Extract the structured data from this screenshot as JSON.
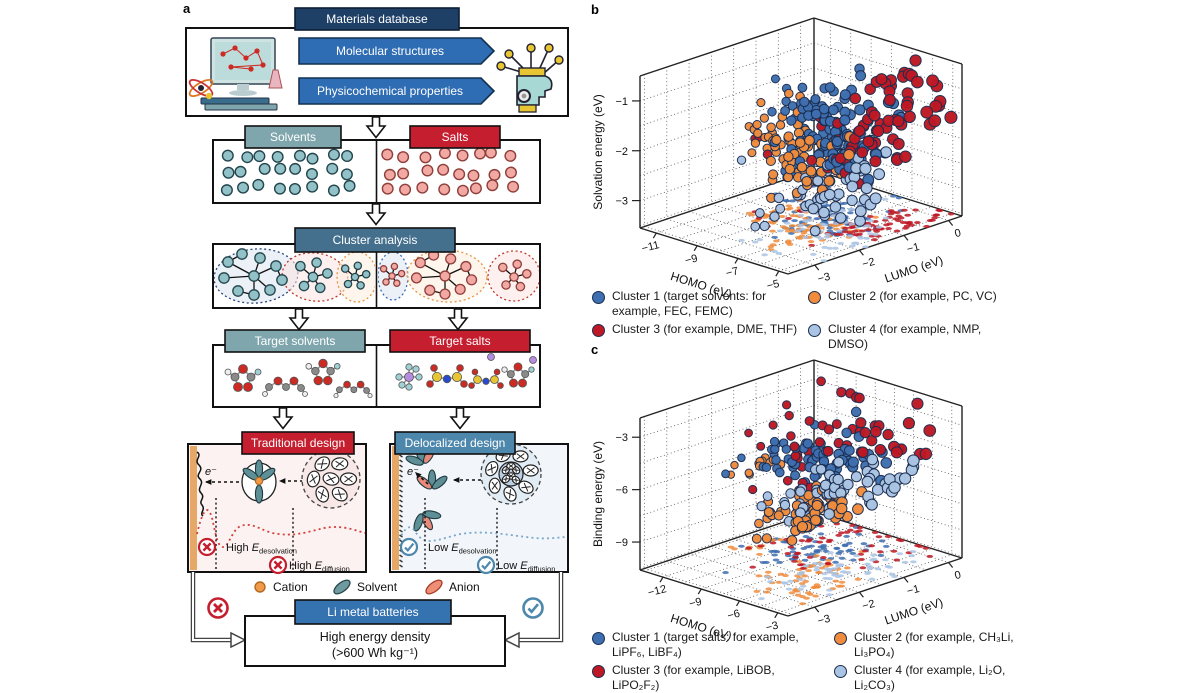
{
  "figure": {
    "panel_a_label": "a",
    "panel_b_label": "b",
    "panel_c_label": "c"
  },
  "colors": {
    "navy_box": "#1e3f66",
    "blue_arrow": "#2e6cb3",
    "steel_box": "#45708d",
    "teal_box": "#7fa6ad",
    "red_box": "#c41e2f",
    "delocalized_blue": "#4d87ac",
    "li_blue": "#3572b0",
    "cluster1": "#3e6fb0",
    "cluster2": "#f08c3c",
    "cluster3": "#bd1823",
    "cluster4": "#aac4e4",
    "cation_orange": "#f09a4a",
    "solvent_teal": "#6f9aa0",
    "anion_salmon": "#ef8e77"
  },
  "flowchart": {
    "materials_database": "Materials database",
    "molecular_structures": "Molecular structures",
    "physicochemical_properties": "Physicochemical properties",
    "solvents": "Solvents",
    "salts": "Salts",
    "cluster_analysis": "Cluster analysis",
    "target_solvents": "Target solvents",
    "target_salts": "Target salts",
    "traditional_design": "Traditional design",
    "delocalized_design": "Delocalized design",
    "electron_label": "e⁻",
    "traditional": {
      "desolvation": {
        "prefix": "High ",
        "symbol": "E",
        "sub": "desolvation"
      },
      "diffusion": {
        "prefix": "High ",
        "symbol": "E",
        "sub": "diffusion"
      }
    },
    "delocalized": {
      "desolvation": {
        "prefix": "Low ",
        "symbol": "E",
        "sub": "desolvation"
      },
      "diffusion": {
        "prefix": "Low ",
        "symbol": "E",
        "sub": "diffusion"
      }
    },
    "species_legend": {
      "cation": "Cation",
      "solvent": "Solvent",
      "anion": "Anion"
    },
    "li_metal_batteries": "Li metal batteries",
    "energy_line1": "High energy density",
    "energy_line2": "(>600 Wh kg⁻¹)"
  },
  "chart_data": [
    {
      "type": "scatter3d",
      "panel": "b",
      "xlabel": "HOMO (eV)",
      "ylabel": "LUMO (eV)",
      "zlabel": "Solvation energy (eV)",
      "x_range": [
        -11.8,
        -4.55
      ],
      "y_range": [
        -3.6,
        0.3
      ],
      "z_range": [
        -3.55,
        -0.5
      ],
      "x_ticks": [
        -11,
        -9,
        -7,
        -5
      ],
      "y_ticks": [
        0,
        -1,
        -2,
        -3
      ],
      "z_ticks": [
        -1,
        -2,
        -3
      ],
      "x_grid": [
        -11,
        -10,
        -9,
        -8,
        -7,
        -6,
        -5
      ],
      "y_grid": [
        0,
        -0.5,
        -1,
        -1.5,
        -2,
        -2.5,
        -3,
        -3.5
      ],
      "z_grid": [
        -1,
        -1.5,
        -2,
        -2.5,
        -3,
        -3.5
      ],
      "seed": 7,
      "clusters": [
        {
          "name": "Cluster 1",
          "color": "#3e6fb0",
          "blobs": [
            {
              "n": 55,
              "c": [
                -7.9,
                -1.0,
                -1.75
              ],
              "s": [
                0.75,
                0.55,
                0.35
              ]
            },
            {
              "n": 30,
              "c": [
                -8.9,
                -0.8,
                -1.55
              ],
              "s": [
                0.65,
                0.45,
                0.3
              ]
            },
            {
              "n": 30,
              "c": [
                -7.1,
                -1.5,
                -2.05
              ],
              "s": [
                0.55,
                0.45,
                0.3
              ]
            }
          ]
        },
        {
          "name": "Cluster 2",
          "color": "#f08c3c",
          "blobs": [
            {
              "n": 38,
              "c": [
                -9.4,
                -1.55,
                -1.9
              ],
              "s": [
                0.5,
                0.4,
                0.28
              ]
            },
            {
              "n": 48,
              "c": [
                -7.0,
                -1.9,
                -2.2
              ],
              "s": [
                0.6,
                0.5,
                0.3
              ]
            }
          ]
        },
        {
          "name": "Cluster 3",
          "color": "#bd1823",
          "blobs": [
            {
              "n": 42,
              "c": [
                -5.6,
                -0.55,
                -1.25
              ],
              "s": [
                0.55,
                0.5,
                0.45
              ]
            },
            {
              "n": 26,
              "c": [
                -6.2,
                -1.15,
                -1.95
              ],
              "s": [
                0.5,
                0.4,
                0.3
              ]
            },
            {
              "n": 8,
              "c": [
                -9.0,
                -1.4,
                -2.1
              ],
              "s": [
                0.5,
                0.35,
                0.3
              ]
            }
          ]
        },
        {
          "name": "Cluster 4",
          "color": "#aac4e4",
          "blobs": [
            {
              "n": 42,
              "c": [
                -6.7,
                -1.8,
                -2.6
              ],
              "s": [
                0.95,
                0.7,
                0.35
              ]
            },
            {
              "n": 30,
              "c": [
                -7.9,
                -1.1,
                -2.95
              ],
              "s": [
                0.9,
                0.55,
                0.3
              ]
            }
          ]
        }
      ],
      "legend": [
        {
          "color": "#3e6fb0",
          "text": "Cluster 1 (target solvents: for example, FEC, FEMC)"
        },
        {
          "color": "#f08c3c",
          "text": "Cluster 2 (for example, PC, VC)"
        },
        {
          "color": "#bd1823",
          "text": "Cluster 3 (for example, DME, THF)"
        },
        {
          "color": "#aac4e4",
          "text": "Cluster 4 (for example, NMP, DMSO)"
        }
      ]
    },
    {
      "type": "scatter3d",
      "panel": "c",
      "xlabel": "HOMO (eV)",
      "ylabel": "LUMO (eV)",
      "zlabel": "Binding energy (eV)",
      "x_range": [
        -13.8,
        -2.2
      ],
      "y_range": [
        -3.6,
        0.3
      ],
      "z_range": [
        -10.6,
        -1.9
      ],
      "x_ticks": [
        -12,
        -9,
        -6,
        -3
      ],
      "y_ticks": [
        0,
        -1,
        -2,
        -3
      ],
      "z_ticks": [
        -3,
        -6,
        -9
      ],
      "x_grid": [
        -13.5,
        -12,
        -10.5,
        -9,
        -7.5,
        -6,
        -4.5,
        -3
      ],
      "y_grid": [
        0,
        -0.5,
        -1,
        -1.5,
        -2,
        -2.5,
        -3,
        -3.5
      ],
      "z_grid": [
        -3,
        -4.5,
        -6,
        -7.5,
        -9,
        -10.5
      ],
      "seed": 13,
      "clusters": [
        {
          "name": "Cluster 1",
          "color": "#3e6fb0",
          "blobs": [
            {
              "n": 35,
              "c": [
                -9.6,
                -1.1,
                -5.4
              ],
              "s": [
                0.9,
                0.6,
                0.55
              ]
            },
            {
              "n": 22,
              "c": [
                -7.6,
                -0.9,
                -5.6
              ],
              "s": [
                0.7,
                0.5,
                0.5
              ]
            },
            {
              "n": 10,
              "c": [
                -11.3,
                -0.9,
                -5.2
              ],
              "s": [
                0.7,
                0.5,
                0.5
              ]
            }
          ]
        },
        {
          "name": "Cluster 2",
          "color": "#f08c3c",
          "blobs": [
            {
              "n": 38,
              "c": [
                -6.9,
                -1.9,
                -7.0
              ],
              "s": [
                0.8,
                0.5,
                0.5
              ]
            },
            {
              "n": 22,
              "c": [
                -4.3,
                -2.4,
                -6.4
              ],
              "s": [
                0.7,
                0.5,
                0.45
              ]
            },
            {
              "n": 12,
              "c": [
                -11.8,
                -1.6,
                -6.1
              ],
              "s": [
                0.8,
                0.45,
                0.4
              ]
            }
          ]
        },
        {
          "name": "Cluster 3",
          "color": "#bd1823",
          "blobs": [
            {
              "n": 26,
              "c": [
                -10.6,
                -0.8,
                -4.4
              ],
              "s": [
                1.5,
                0.7,
                0.9
              ]
            },
            {
              "n": 18,
              "c": [
                -5.8,
                -0.5,
                -3.9
              ],
              "s": [
                1.3,
                0.6,
                0.8
              ]
            },
            {
              "n": 12,
              "c": [
                -8.0,
                -1.4,
                -5.9
              ],
              "s": [
                1.1,
                0.5,
                0.8
              ]
            }
          ]
        },
        {
          "name": "Cluster 4",
          "color": "#aac4e4",
          "blobs": [
            {
              "n": 34,
              "c": [
                -6.1,
                -2.0,
                -6.1
              ],
              "s": [
                0.9,
                0.55,
                0.5
              ]
            },
            {
              "n": 24,
              "c": [
                -4.6,
                -1.1,
                -5.7
              ],
              "s": [
                0.9,
                0.55,
                0.5
              ]
            }
          ]
        }
      ],
      "legend": [
        {
          "color": "#3e6fb0",
          "text": "Cluster 1 (target salts: for example, LiPF₆, LiBF₄)"
        },
        {
          "color": "#f08c3c",
          "text": "Cluster 2 (for example, CH₃Li, Li₃PO₄)"
        },
        {
          "color": "#bd1823",
          "text": "Cluster 3 (for example, LiBOB, LiPO₂F₂)"
        },
        {
          "color": "#aac4e4",
          "text": "Cluster 4 (for example, Li₂O, Li₂CO₃)"
        }
      ]
    }
  ]
}
